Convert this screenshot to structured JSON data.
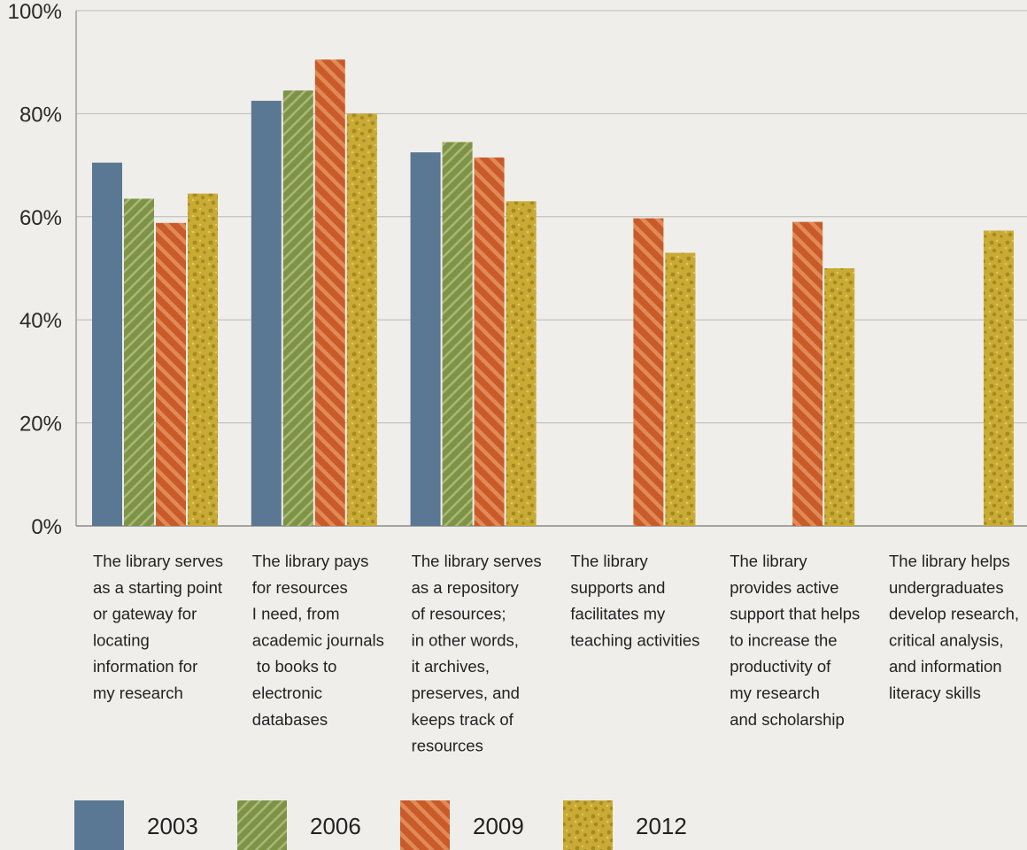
{
  "chart_data": {
    "type": "bar",
    "title": "",
    "xlabel": "",
    "ylabel": "",
    "ylim": [
      0,
      100
    ],
    "yticks": [
      "0%",
      "20%",
      "40%",
      "60%",
      "80%",
      "100%"
    ],
    "grid": true,
    "legend_position": "bottom",
    "categories": [
      "The library serves as a starting point or gateway for locating information for my research",
      "The library pays for resources I need, from academic journals to books to electronic databases",
      "The library serves as a repository of resources; in other words, it archives, preserves, and keeps track of resources",
      "The library supports and facilitates my teaching activities",
      "The library provides active support that helps to increase the productivity of my research and scholarship",
      "The library helps undergraduates develop research, critical analysis, and information literacy skills"
    ],
    "category_lines": [
      [
        "The library serves",
        "as a starting point",
        "or gateway for",
        "locating",
        "information for",
        "my research"
      ],
      [
        "The library pays",
        "for resources",
        "I need, from",
        "academic journals",
        " to books to",
        "electronic",
        "databases"
      ],
      [
        "The library serves",
        "as a repository",
        "of resources;",
        "in other words,",
        "it archives,",
        "preserves, and",
        "keeps track of",
        "resources"
      ],
      [
        "The library",
        "supports and",
        "facilitates my",
        "teaching activities"
      ],
      [
        "The library",
        "provides active",
        "support that helps",
        "to increase the",
        "productivity of",
        "my research",
        "and scholarship"
      ],
      [
        "The library helps",
        "undergraduates",
        "develop research,",
        "critical analysis,",
        "and information",
        "literacy skills"
      ]
    ],
    "series": [
      {
        "name": "2003",
        "color": "#5a7794",
        "pattern": "solid",
        "values": [
          70.5,
          82.5,
          72.5,
          null,
          null,
          null
        ]
      },
      {
        "name": "2006",
        "color": "#7f9347",
        "pattern": "diagonal-stripes",
        "values": [
          63.5,
          84.5,
          74.5,
          null,
          null,
          null
        ]
      },
      {
        "name": "2009",
        "color": "#c95a2a",
        "pattern": "diagonal-stripes",
        "values": [
          58.8,
          90.5,
          71.5,
          59.7,
          59.0,
          null
        ]
      },
      {
        "name": "2012",
        "color": "#c9aa34",
        "pattern": "speckled",
        "values": [
          64.5,
          80.0,
          63.0,
          53.0,
          50.0,
          57.3
        ]
      }
    ]
  }
}
